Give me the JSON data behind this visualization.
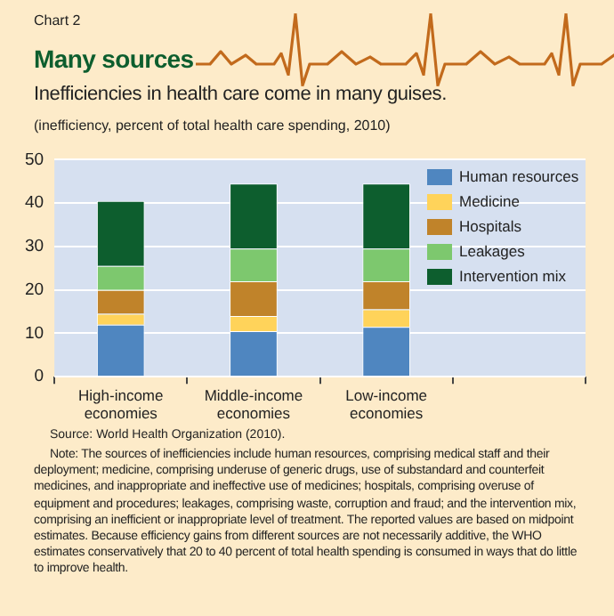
{
  "chart_data": {
    "type": "bar",
    "title": "Many sources",
    "subtitle": "Inefficiencies in health care come in many guises.",
    "ylabel": "(inefficiency, percent of total health care spending, 2010)",
    "categories": [
      "High-income economies",
      "Middle-income economies",
      "Low-income economies",
      null
    ],
    "stacked": true,
    "series": [
      {
        "name": "Human resources",
        "color": "#4f86c0",
        "values": [
          12,
          10.5,
          11.5,
          null
        ]
      },
      {
        "name": "Medicine",
        "color": "#ffd35a",
        "values": [
          2.5,
          3.5,
          4,
          null
        ]
      },
      {
        "name": "Hospitals",
        "color": "#c0832a",
        "values": [
          5.5,
          8,
          6.5,
          null
        ]
      },
      {
        "name": "Leakages",
        "color": "#7dc86e",
        "values": [
          5.5,
          7.5,
          7.5,
          null
        ]
      },
      {
        "name": "Intervention mix",
        "color": "#0d5e2e",
        "values": [
          15,
          15,
          15,
          null
        ]
      }
    ],
    "ylim": [
      0,
      50
    ],
    "yticks": [
      0,
      10,
      20,
      30,
      40,
      50
    ],
    "grid": "y",
    "legend": "top right",
    "annotations": [
      "Chart 2",
      "Source: World Health Organization (2010).",
      "Note: The sources of inefficiencies include human resources, comprising medical staff and their deployment; medicine, comprising underuse of generic drugs, use of substandard and counterfeit medicines, and inappropriate and ineffective use of medicines; hospitals, comprising overuse of equipment and procedures; leakages, comprising waste, corruption and fraud; and the intervention mix, comprising an inefficient or inappropriate level of treatment. The reported values are based on midpoint estimates. Because efficiency gains from different sources are not necessarily additive, the WHO estimates conservatively that 20 to 40 percent of total health spending is consumed in ways that do little to improve health."
    ]
  }
}
